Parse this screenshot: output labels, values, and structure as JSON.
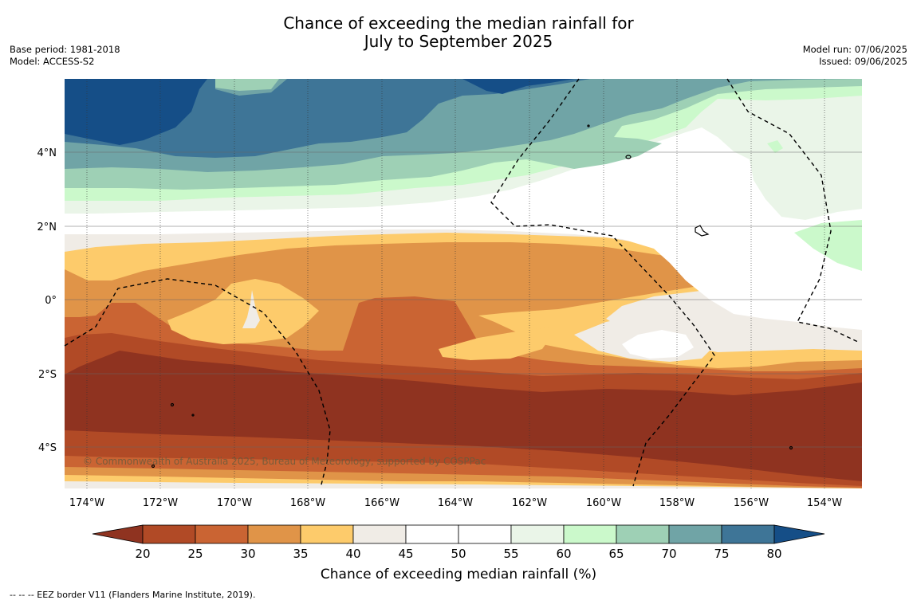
{
  "title": {
    "line1": "Chance of exceeding the median rainfall for",
    "line2": "July to September 2025"
  },
  "meta_left": {
    "base_period": "Base period: 1981-2018",
    "model": "Model: ACCESS-S2"
  },
  "meta_right": {
    "model_run": "Model run: 07/06/2025",
    "issued": "Issued: 09/06/2025"
  },
  "map": {
    "lon_ticks": [
      "174°W",
      "172°W",
      "170°W",
      "168°W",
      "166°W",
      "164°W",
      "162°W",
      "160°W",
      "158°W",
      "156°W",
      "154°W"
    ],
    "lat_ticks": [
      "4°N",
      "2°N",
      "0°",
      "2°S",
      "4°S"
    ],
    "copyright": "© Commonwealth of Australia 2025, Bureau of Meteorology, supported by COSPPac",
    "lon_range": [
      -174.6,
      -153.0
    ],
    "lat_range": [
      -5.0,
      6.0
    ]
  },
  "colorbar": {
    "label": "Chance of exceeding median rainfall (%)",
    "ticks": [
      "20",
      "25",
      "30",
      "35",
      "40",
      "45",
      "50",
      "55",
      "60",
      "65",
      "70",
      "75",
      "80"
    ],
    "colors": {
      "below20": "#8f3320",
      "20-25": "#b14a26",
      "25-30": "#ca6433",
      "30-35": "#e09448",
      "35-40": "#fdcb6b",
      "40-45": "#f0ece6",
      "45-50": "#ffffff",
      "50-55": "#ffffff",
      "55-60": "#eaf5e8",
      "60-65": "#cbf9cb",
      "65-70": "#9ed0b5",
      "70-75": "#70a4a6",
      "75-80": "#3e7597",
      "above80": "#154e87"
    }
  },
  "footnote": "--  --  -- EEZ border V11 (Flanders Marine Institute, 2019)."
}
